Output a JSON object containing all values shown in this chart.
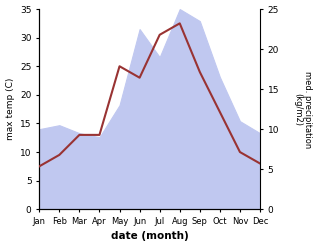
{
  "months": [
    "Jan",
    "Feb",
    "Mar",
    "Apr",
    "May",
    "Jun",
    "Jul",
    "Aug",
    "Sep",
    "Oct",
    "Nov",
    "Dec"
  ],
  "temp": [
    7.5,
    9.5,
    13.0,
    13.0,
    25.0,
    23.0,
    30.5,
    32.5,
    24.0,
    17.0,
    10.0,
    8.0
  ],
  "precip": [
    10.0,
    10.5,
    9.5,
    9.0,
    13.0,
    22.5,
    19.0,
    25.0,
    23.5,
    16.5,
    11.0,
    9.5
  ],
  "temp_color": "#993333",
  "precip_fill_color": "#c0c8f0",
  "precip_edge_color": "#9aa4d8",
  "ylabel_left": "max temp (C)",
  "ylabel_right": "med. precipitation\n(kg/m2)",
  "xlabel": "date (month)",
  "ylim_left": [
    0,
    35
  ],
  "ylim_right": [
    0,
    25
  ],
  "yticks_left": [
    0,
    5,
    10,
    15,
    20,
    25,
    30,
    35
  ],
  "yticks_right": [
    0,
    5,
    10,
    15,
    20,
    25
  ],
  "background_color": "#ffffff"
}
